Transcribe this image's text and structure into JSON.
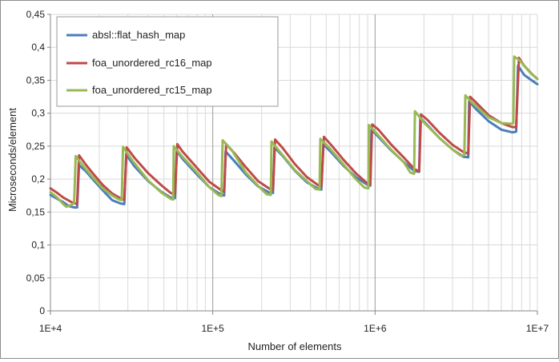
{
  "chart_data": {
    "type": "line",
    "title": "",
    "xlabel": "Number of elements",
    "ylabel": "Microseconds/element",
    "x_scale": "log",
    "xlim": [
      10000,
      10000000
    ],
    "ylim": [
      0,
      0.45
    ],
    "grid": true,
    "legend_position": "top-left",
    "x_tick_labels": [
      "1E+4",
      "1E+5",
      "1E+6",
      "1E+7"
    ],
    "y_tick_labels": [
      "0",
      "0,05",
      "0,1",
      "0,15",
      "0,2",
      "0,25",
      "0,3",
      "0,35",
      "0,4",
      "0,45"
    ],
    "series": [
      {
        "name": "absl::flat_hash_map",
        "color": "#4a7ebb",
        "points": [
          [
            10000,
            0.176
          ],
          [
            11000,
            0.17
          ],
          [
            12000,
            0.165
          ],
          [
            13000,
            0.159
          ],
          [
            14000,
            0.157
          ],
          [
            14600,
            0.157
          ],
          [
            15000,
            0.221
          ],
          [
            16500,
            0.212
          ],
          [
            18500,
            0.198
          ],
          [
            21000,
            0.183
          ],
          [
            24000,
            0.168
          ],
          [
            27000,
            0.163
          ],
          [
            28500,
            0.162
          ],
          [
            29300,
            0.237
          ],
          [
            33000,
            0.219
          ],
          [
            40000,
            0.197
          ],
          [
            48000,
            0.181
          ],
          [
            55000,
            0.172
          ],
          [
            58500,
            0.171
          ],
          [
            60000,
            0.243
          ],
          [
            65000,
            0.231
          ],
          [
            80000,
            0.207
          ],
          [
            95000,
            0.188
          ],
          [
            113000,
            0.176
          ],
          [
            117500,
            0.175
          ],
          [
            120000,
            0.242
          ],
          [
            135000,
            0.228
          ],
          [
            160000,
            0.207
          ],
          [
            190000,
            0.189
          ],
          [
            225000,
            0.179
          ],
          [
            235000,
            0.179
          ],
          [
            240000,
            0.248
          ],
          [
            270000,
            0.235
          ],
          [
            320000,
            0.213
          ],
          [
            380000,
            0.195
          ],
          [
            450000,
            0.185
          ],
          [
            467000,
            0.184
          ],
          [
            480000,
            0.253
          ],
          [
            540000,
            0.24
          ],
          [
            640000,
            0.22
          ],
          [
            760000,
            0.203
          ],
          [
            900000,
            0.191
          ],
          [
            935000,
            0.19
          ],
          [
            950000,
            0.275
          ],
          [
            1050000,
            0.264
          ],
          [
            1250000,
            0.244
          ],
          [
            1500000,
            0.226
          ],
          [
            1750000,
            0.212
          ],
          [
            1870000,
            0.211
          ],
          [
            1900000,
            0.293
          ],
          [
            2100000,
            0.282
          ],
          [
            2500000,
            0.262
          ],
          [
            3000000,
            0.245
          ],
          [
            3500000,
            0.234
          ],
          [
            3750000,
            0.233
          ],
          [
            3800000,
            0.318
          ],
          [
            4200000,
            0.306
          ],
          [
            5000000,
            0.288
          ],
          [
            6000000,
            0.275
          ],
          [
            7000000,
            0.271
          ],
          [
            7400000,
            0.272
          ],
          [
            7600000,
            0.372
          ],
          [
            8300000,
            0.358
          ],
          [
            9200000,
            0.35
          ],
          [
            10000000,
            0.344
          ]
        ]
      },
      {
        "name": "foa_unordered_rc16_map",
        "color": "#be4b48",
        "points": [
          [
            10000,
            0.186
          ],
          [
            11000,
            0.179
          ],
          [
            12000,
            0.172
          ],
          [
            13500,
            0.165
          ],
          [
            14600,
            0.162
          ],
          [
            15000,
            0.236
          ],
          [
            16500,
            0.222
          ],
          [
            18500,
            0.207
          ],
          [
            21000,
            0.191
          ],
          [
            24000,
            0.178
          ],
          [
            27000,
            0.171
          ],
          [
            28500,
            0.169
          ],
          [
            29500,
            0.248
          ],
          [
            33000,
            0.232
          ],
          [
            40000,
            0.209
          ],
          [
            48000,
            0.191
          ],
          [
            55000,
            0.179
          ],
          [
            58500,
            0.177
          ],
          [
            60500,
            0.253
          ],
          [
            65000,
            0.242
          ],
          [
            80000,
            0.217
          ],
          [
            95000,
            0.196
          ],
          [
            113000,
            0.183
          ],
          [
            117500,
            0.181
          ],
          [
            121000,
            0.253
          ],
          [
            135000,
            0.24
          ],
          [
            160000,
            0.218
          ],
          [
            190000,
            0.197
          ],
          [
            225000,
            0.185
          ],
          [
            235000,
            0.184
          ],
          [
            242000,
            0.26
          ],
          [
            270000,
            0.247
          ],
          [
            320000,
            0.223
          ],
          [
            380000,
            0.203
          ],
          [
            450000,
            0.19
          ],
          [
            467000,
            0.189
          ],
          [
            484000,
            0.264
          ],
          [
            540000,
            0.251
          ],
          [
            640000,
            0.229
          ],
          [
            760000,
            0.209
          ],
          [
            900000,
            0.193
          ],
          [
            935000,
            0.192
          ],
          [
            960000,
            0.283
          ],
          [
            1050000,
            0.275
          ],
          [
            1250000,
            0.253
          ],
          [
            1500000,
            0.233
          ],
          [
            1750000,
            0.215
          ],
          [
            1870000,
            0.212
          ],
          [
            1920000,
            0.298
          ],
          [
            2100000,
            0.29
          ],
          [
            2500000,
            0.27
          ],
          [
            3000000,
            0.252
          ],
          [
            3500000,
            0.241
          ],
          [
            3750000,
            0.239
          ],
          [
            3850000,
            0.325
          ],
          [
            4200000,
            0.316
          ],
          [
            5000000,
            0.297
          ],
          [
            6000000,
            0.285
          ],
          [
            7000000,
            0.279
          ],
          [
            7400000,
            0.279
          ],
          [
            7700000,
            0.384
          ],
          [
            8300000,
            0.372
          ],
          [
            9200000,
            0.36
          ],
          [
            10000000,
            0.352
          ]
        ]
      },
      {
        "name": "foa_unordered_rc15_map",
        "color": "#98b954",
        "points": [
          [
            10000,
            0.18
          ],
          [
            11000,
            0.172
          ],
          [
            12000,
            0.162
          ],
          [
            12500,
            0.158
          ],
          [
            13500,
            0.161
          ],
          [
            14000,
            0.164
          ],
          [
            14300,
            0.235
          ],
          [
            16000,
            0.219
          ],
          [
            18500,
            0.201
          ],
          [
            21000,
            0.186
          ],
          [
            24000,
            0.175
          ],
          [
            26500,
            0.169
          ],
          [
            27500,
            0.168
          ],
          [
            28000,
            0.249
          ],
          [
            32000,
            0.228
          ],
          [
            40000,
            0.198
          ],
          [
            48000,
            0.18
          ],
          [
            55000,
            0.17
          ],
          [
            57000,
            0.169
          ],
          [
            57500,
            0.25
          ],
          [
            65000,
            0.234
          ],
          [
            80000,
            0.21
          ],
          [
            95000,
            0.188
          ],
          [
            108000,
            0.176
          ],
          [
            113000,
            0.174
          ],
          [
            115000,
            0.259
          ],
          [
            130000,
            0.245
          ],
          [
            160000,
            0.21
          ],
          [
            190000,
            0.19
          ],
          [
            215000,
            0.177
          ],
          [
            228000,
            0.176
          ],
          [
            230000,
            0.257
          ],
          [
            260000,
            0.241
          ],
          [
            320000,
            0.214
          ],
          [
            380000,
            0.197
          ],
          [
            430000,
            0.185
          ],
          [
            455000,
            0.184
          ],
          [
            460000,
            0.261
          ],
          [
            520000,
            0.248
          ],
          [
            640000,
            0.222
          ],
          [
            760000,
            0.2
          ],
          [
            860000,
            0.187
          ],
          [
            910000,
            0.186
          ],
          [
            915000,
            0.282
          ],
          [
            1000000,
            0.272
          ],
          [
            1250000,
            0.245
          ],
          [
            1500000,
            0.226
          ],
          [
            1650000,
            0.21
          ],
          [
            1740000,
            0.208
          ],
          [
            1760000,
            0.303
          ],
          [
            2000000,
            0.286
          ],
          [
            2500000,
            0.262
          ],
          [
            3000000,
            0.245
          ],
          [
            3350000,
            0.236
          ],
          [
            3550000,
            0.236
          ],
          [
            3600000,
            0.327
          ],
          [
            4000000,
            0.315
          ],
          [
            5000000,
            0.294
          ],
          [
            6000000,
            0.285
          ],
          [
            7000000,
            0.284
          ],
          [
            7100000,
            0.285
          ],
          [
            7200000,
            0.386
          ],
          [
            7800000,
            0.38
          ],
          [
            9000000,
            0.362
          ],
          [
            10000000,
            0.352
          ]
        ]
      }
    ]
  }
}
